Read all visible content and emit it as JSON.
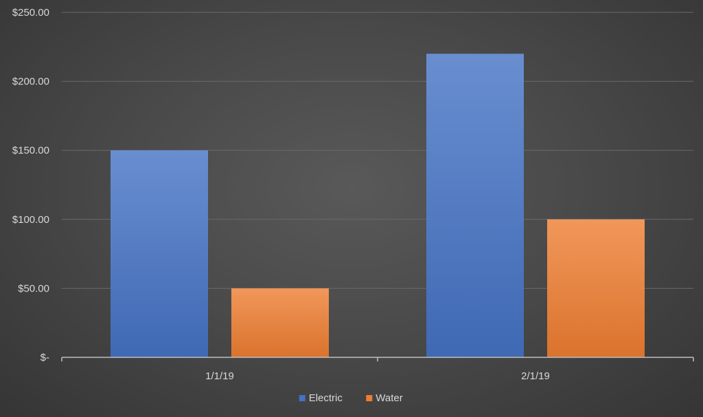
{
  "chart_data": {
    "type": "bar",
    "title": "",
    "xlabel": "",
    "ylabel": "",
    "categories": [
      "1/1/19",
      "2/1/19"
    ],
    "series": [
      {
        "name": "Electric",
        "values": [
          150,
          220
        ],
        "color": "#4472c4"
      },
      {
        "name": "Water",
        "values": [
          50,
          100
        ],
        "color": "#ed7d31"
      }
    ],
    "ylim": [
      0,
      250
    ],
    "yticks": [
      0,
      50,
      100,
      150,
      200,
      250
    ],
    "ytick_labels": [
      "$-",
      "$50.00",
      "$100.00",
      "$150.00",
      "$200.00",
      "$250.00"
    ],
    "grid": true,
    "legend_position": "bottom"
  }
}
